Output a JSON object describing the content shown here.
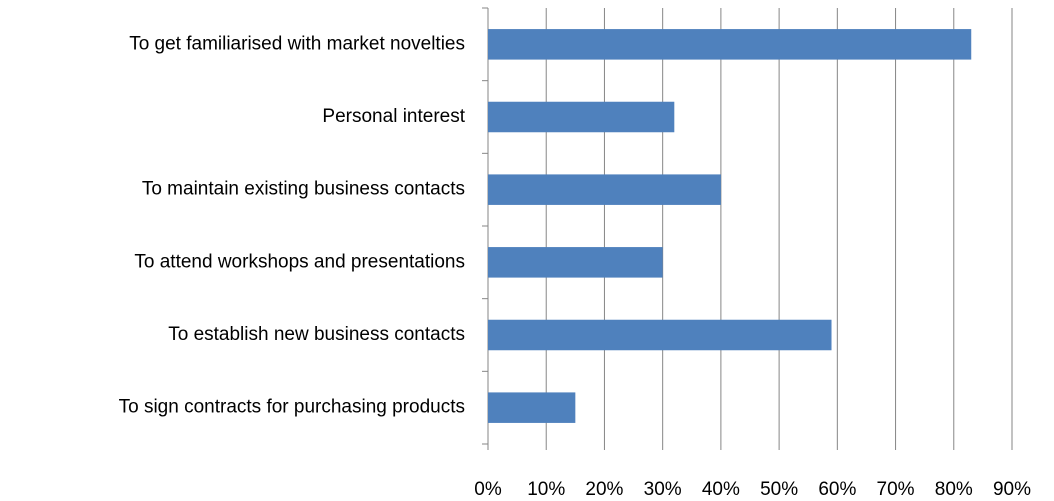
{
  "chart_data": {
    "type": "bar",
    "orientation": "horizontal",
    "categories": [
      "To get familiarised with market novelties",
      "Personal interest",
      "To maintain existing business contacts",
      "To attend workshops and presentations",
      "To establish new business contacts",
      "To sign contracts for purchasing products"
    ],
    "values": [
      83,
      32,
      40,
      30,
      59,
      15
    ],
    "color": "#4f81bd",
    "xlim": [
      0,
      90
    ],
    "xticks": [
      {
        "value": 0,
        "label": "0%"
      },
      {
        "value": 10,
        "label": "10%"
      },
      {
        "value": 20,
        "label": "20%"
      },
      {
        "value": 30,
        "label": "30%"
      },
      {
        "value": 40,
        "label": "40%"
      },
      {
        "value": 50,
        "label": "50%"
      },
      {
        "value": 60,
        "label": "60%"
      },
      {
        "value": 70,
        "label": "70%"
      },
      {
        "value": 80,
        "label": "80%"
      },
      {
        "value": 90,
        "label": "90%"
      }
    ],
    "grid": true
  }
}
